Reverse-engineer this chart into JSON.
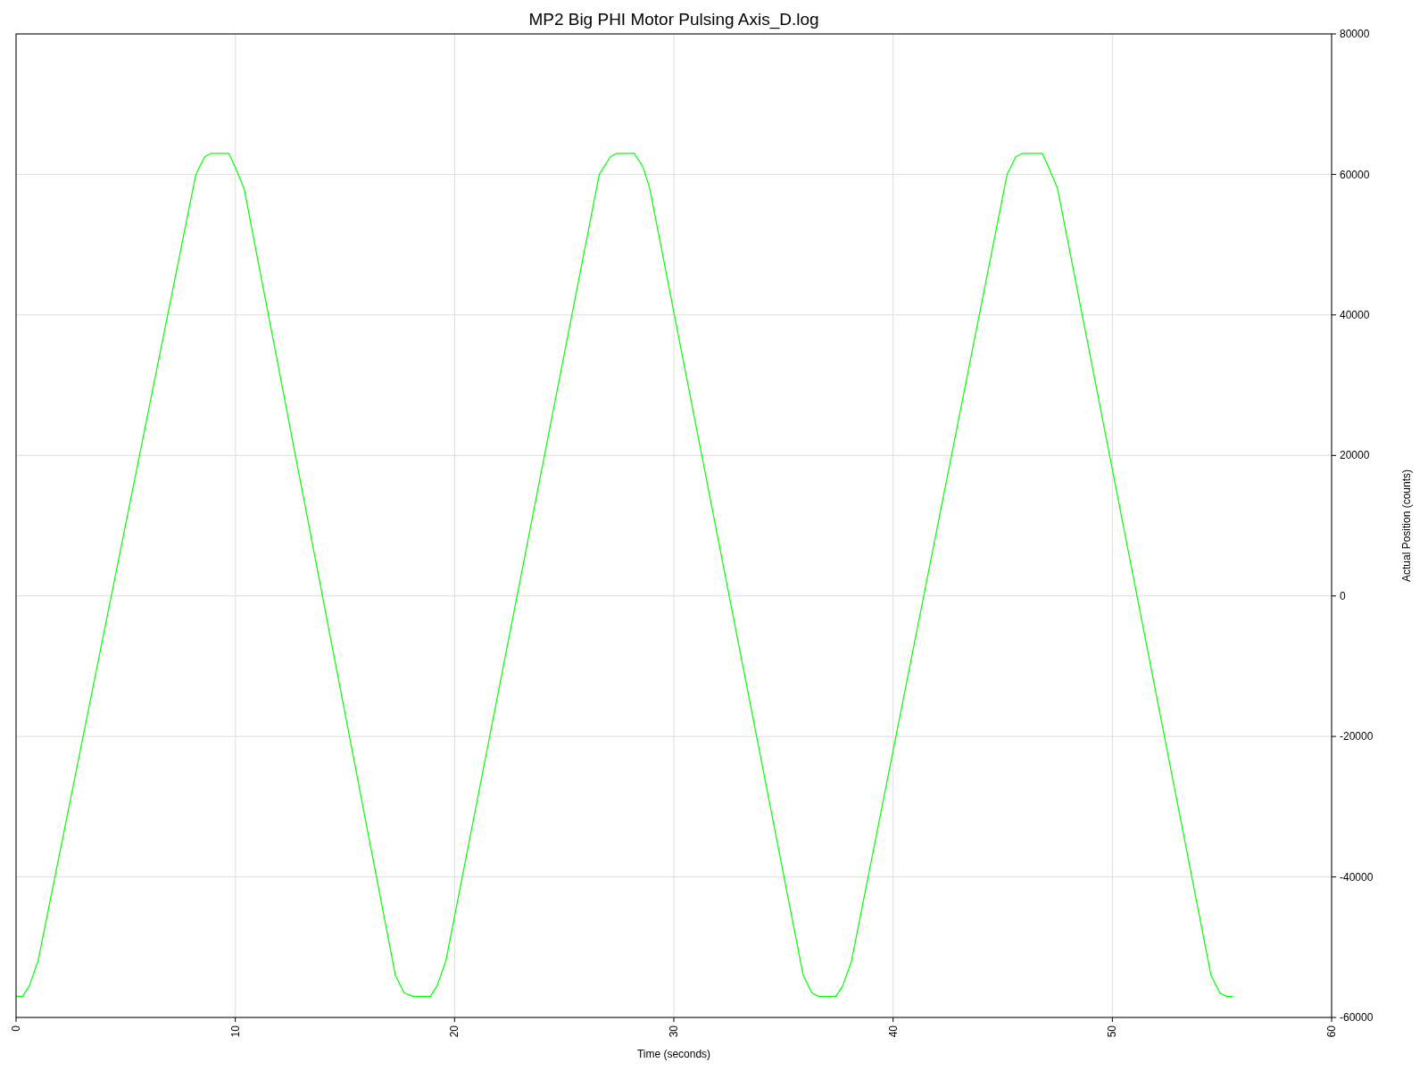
{
  "chart_data": {
    "type": "line",
    "title": "MP2 Big PHI Motor Pulsing Axis_D.log",
    "xlabel": "Time (seconds)",
    "ylabel": "Actual Position (counts)",
    "x": [
      0,
      0.3,
      0.6,
      1.0,
      8.2,
      8.6,
      8.9,
      9.7,
      10.0,
      10.4,
      17.3,
      17.7,
      18.1,
      18.9,
      19.2,
      19.6,
      26.6,
      27.1,
      27.4,
      28.2,
      28.6,
      28.9,
      35.9,
      36.3,
      36.6,
      37.4,
      37.7,
      38.1,
      45.2,
      45.6,
      45.9,
      46.8,
      47.1,
      47.5,
      54.5,
      54.9,
      55.2,
      55.5
    ],
    "series": [
      {
        "color": "#00ff00",
        "values": [
          -57000,
          -57000,
          -55500,
          -52000,
          60000,
          62500,
          63000,
          63000,
          61000,
          58000,
          -54000,
          -56500,
          -57000,
          -57000,
          -55500,
          -52000,
          60000,
          62500,
          63000,
          63000,
          61000,
          58000,
          -54000,
          -56500,
          -57000,
          -57000,
          -55500,
          -52000,
          60000,
          62500,
          63000,
          63000,
          61000,
          58000,
          -54000,
          -56500,
          -57000,
          -57000
        ]
      }
    ],
    "xlim": [
      0,
      60
    ],
    "xticks": [
      0,
      10,
      20,
      30,
      40,
      50,
      60
    ],
    "ylim": [
      -60000,
      80000
    ],
    "yticks": [
      -60000,
      -40000,
      -20000,
      0,
      20000,
      40000,
      60000,
      80000
    ],
    "grid": true,
    "marker": "none",
    "line_style": "solid"
  }
}
